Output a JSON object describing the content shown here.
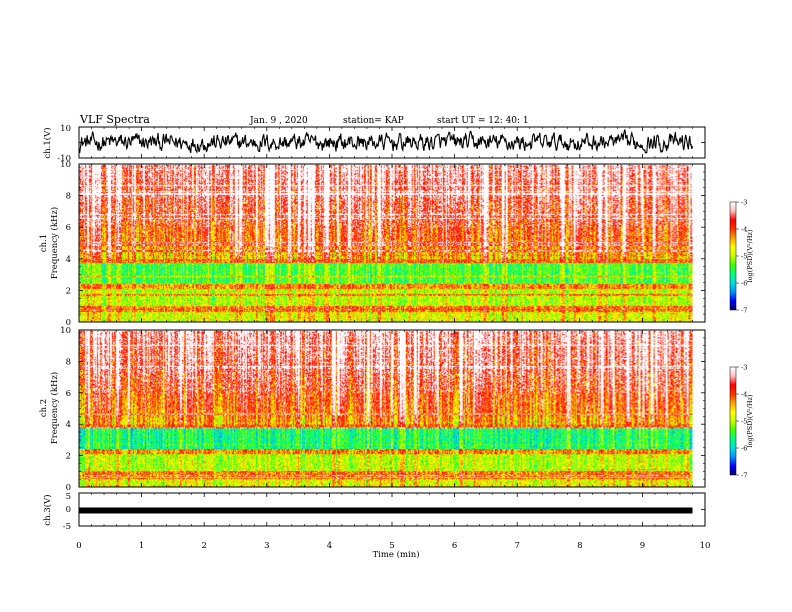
{
  "header": {
    "title": "VLF Spectra",
    "date": "Jan. 9 , 2020",
    "station": "station= KAP",
    "start_ut": "start UT =  12: 40: 1"
  },
  "chart_data": [
    {
      "type": "line",
      "panel": "ch1-waveform",
      "ylabel": "ch.1(V)",
      "ylim": [
        -10,
        10
      ],
      "yticks": [
        "10",
        "-10"
      ],
      "xlim": [
        0,
        10
      ],
      "x_end": 9.8,
      "color": "#000000"
    },
    {
      "type": "heatmap",
      "panel": "ch1-spectrogram",
      "ylabel": "ch.1 Frequency (kHz)",
      "ylim": [
        0,
        10
      ],
      "yticks": [
        "0",
        "2",
        "4",
        "6",
        "8",
        "10"
      ],
      "xlim": [
        0,
        10
      ],
      "x_end": 9.8,
      "colorbar": {
        "label": "log(PSD)(V²/Hz)",
        "range": [
          -7,
          -3
        ],
        "ticks": [
          "-3",
          "-4",
          "-5",
          "-6",
          "-7"
        ]
      }
    },
    {
      "type": "heatmap",
      "panel": "ch2-spectrogram",
      "ylabel": "ch.2 Frequency (kHz)",
      "ylim": [
        0,
        10
      ],
      "yticks": [
        "0",
        "2",
        "4",
        "6",
        "8",
        "10"
      ],
      "xlim": [
        0,
        10
      ],
      "x_end": 9.8,
      "colorbar": {
        "label": "log(PSD)(V²/Hz)",
        "range": [
          -7,
          -3
        ],
        "ticks": [
          "-3",
          "-4",
          "-5",
          "-6",
          "-7"
        ]
      }
    },
    {
      "type": "line",
      "panel": "ch3-waveform",
      "ylabel": "ch.3(V)",
      "ylim": [
        -5,
        5
      ],
      "yticks": [
        "5",
        "0",
        "-5"
      ],
      "xlim": [
        0,
        10
      ],
      "x_end": 9.8,
      "level": -0.3,
      "color": "#000000"
    }
  ],
  "xaxis": {
    "label": "Time (min)",
    "ticks": [
      "0",
      "1",
      "2",
      "3",
      "4",
      "5",
      "6",
      "7",
      "8",
      "9",
      "10"
    ]
  },
  "colorscale": [
    "#000060",
    "#0000ff",
    "#0090ff",
    "#00e0e0",
    "#00ff80",
    "#40ff00",
    "#c8ff00",
    "#ffff00",
    "#ffa000",
    "#ff3000",
    "#ff0000",
    "#ffc0c0",
    "#ffffff"
  ]
}
